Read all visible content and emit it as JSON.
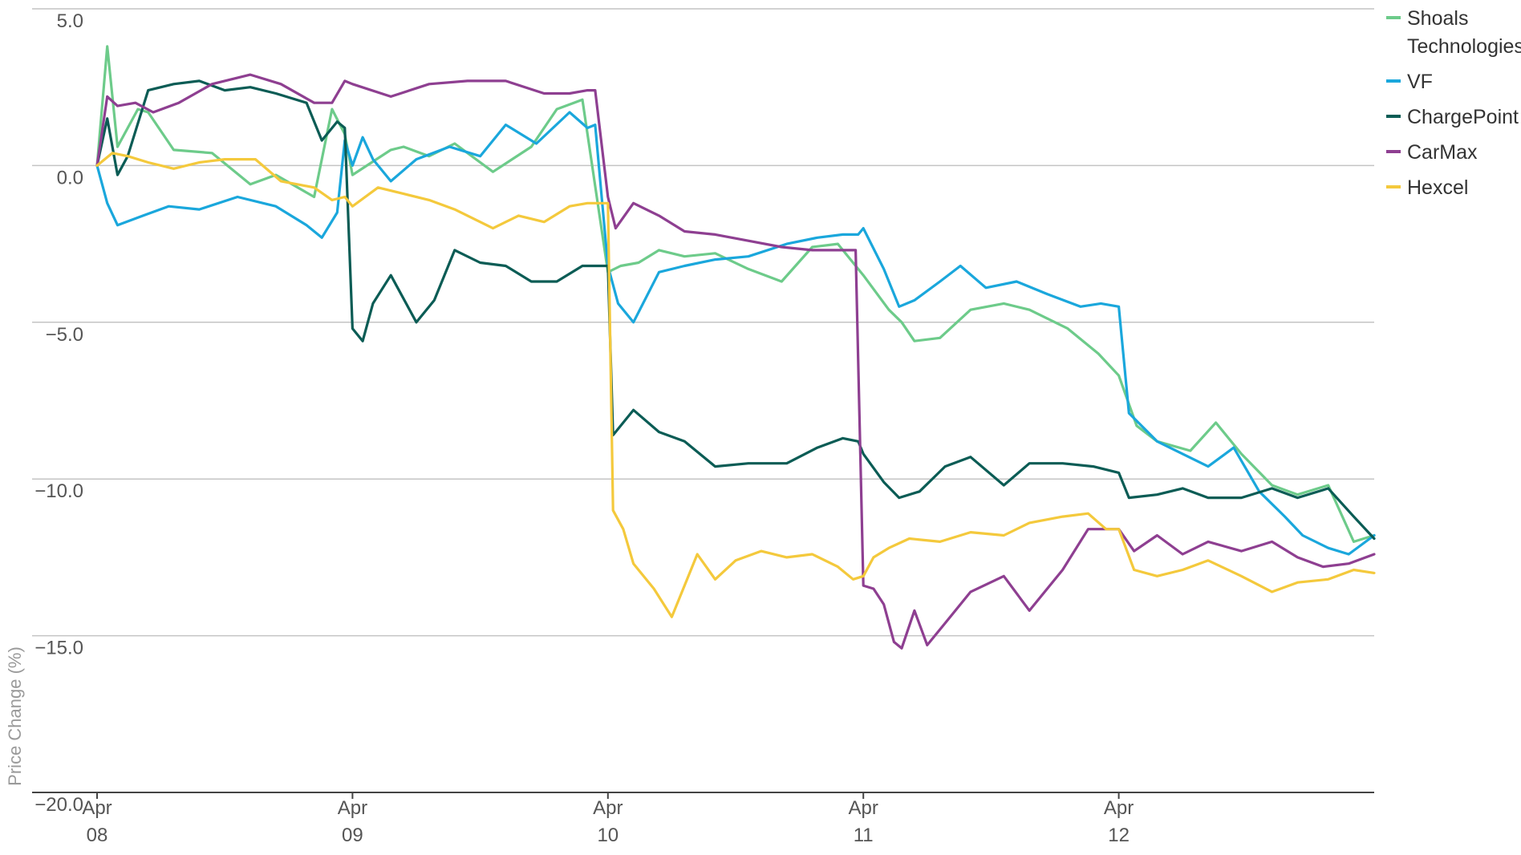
{
  "chart_data": {
    "type": "line",
    "title": "",
    "xlabel": "",
    "ylabel": "Price Change (%)",
    "ylim": [
      -20,
      5
    ],
    "yticks": [
      5,
      0,
      -5,
      -10,
      -15,
      -20
    ],
    "ytick_labels": [
      "5.0",
      "0.0",
      "−5.0",
      "−10.0",
      "−15.0",
      "−20.0"
    ],
    "gridlines": [
      5,
      0,
      -5,
      -10,
      -15
    ],
    "xlim": [
      0,
      5
    ],
    "xticks": [
      {
        "x": 0,
        "line1": "Apr",
        "line2": "08"
      },
      {
        "x": 1,
        "line1": "Apr",
        "line2": "09"
      },
      {
        "x": 2,
        "line1": "Apr",
        "line2": "10"
      },
      {
        "x": 3,
        "line1": "Apr",
        "line2": "11"
      },
      {
        "x": 4,
        "line1": "Apr",
        "line2": "12"
      }
    ],
    "legend_position": "right",
    "series": [
      {
        "name": "Shoals Technologies",
        "legend_lines": [
          "Shoals",
          "Technologies"
        ],
        "color": "#6dcb8a",
        "x": [
          0,
          0.04,
          0.08,
          0.16,
          0.2,
          0.3,
          0.45,
          0.6,
          0.7,
          0.85,
          0.92,
          0.97,
          1.0,
          1.15,
          1.2,
          1.3,
          1.4,
          1.55,
          1.7,
          1.8,
          1.9,
          2.0,
          2.05,
          2.12,
          2.2,
          2.3,
          2.42,
          2.55,
          2.68,
          2.8,
          2.9,
          3.0,
          3.1,
          3.15,
          3.2,
          3.3,
          3.42,
          3.55,
          3.65,
          3.8,
          3.92,
          4.0,
          4.07,
          4.15,
          4.28,
          4.38,
          4.48,
          4.6,
          4.7,
          4.82,
          4.92,
          5.0
        ],
        "y": [
          0,
          3.8,
          0.6,
          1.8,
          1.7,
          0.5,
          0.4,
          -0.6,
          -0.3,
          -1.0,
          1.8,
          1.0,
          -0.3,
          0.5,
          0.6,
          0.3,
          0.7,
          -0.2,
          0.6,
          1.8,
          2.1,
          -3.4,
          -3.2,
          -3.1,
          -2.7,
          -2.9,
          -2.8,
          -3.3,
          -3.7,
          -2.6,
          -2.5,
          -3.5,
          -4.6,
          -5.0,
          -5.6,
          -5.5,
          -4.6,
          -4.4,
          -4.6,
          -5.2,
          -6.0,
          -6.7,
          -8.3,
          -8.8,
          -9.1,
          -8.2,
          -9.2,
          -10.2,
          -10.5,
          -10.2,
          -12.0,
          -11.8
        ]
      },
      {
        "name": "VF",
        "legend_lines": [
          "VF"
        ],
        "color": "#1aa7dc",
        "x": [
          0,
          0.04,
          0.08,
          0.18,
          0.28,
          0.4,
          0.55,
          0.7,
          0.82,
          0.88,
          0.94,
          0.97,
          1.0,
          1.04,
          1.08,
          1.15,
          1.25,
          1.38,
          1.5,
          1.6,
          1.72,
          1.85,
          1.92,
          1.95,
          2.0,
          2.04,
          2.1,
          2.2,
          2.3,
          2.42,
          2.55,
          2.7,
          2.82,
          2.92,
          2.98,
          3.0,
          3.08,
          3.14,
          3.2,
          3.3,
          3.38,
          3.48,
          3.6,
          3.72,
          3.85,
          3.93,
          4.0,
          4.04,
          4.15,
          4.25,
          4.35,
          4.45,
          4.55,
          4.65,
          4.72,
          4.82,
          4.9,
          5.0
        ],
        "y": [
          0,
          -1.2,
          -1.9,
          -1.6,
          -1.3,
          -1.4,
          -1.0,
          -1.3,
          -1.9,
          -2.3,
          -1.5,
          0.8,
          0.0,
          0.9,
          0.2,
          -0.5,
          0.2,
          0.6,
          0.3,
          1.3,
          0.7,
          1.7,
          1.2,
          1.3,
          -3.2,
          -4.4,
          -5.0,
          -3.4,
          -3.2,
          -3.0,
          -2.9,
          -2.5,
          -2.3,
          -2.2,
          -2.2,
          -2.0,
          -3.3,
          -4.5,
          -4.3,
          -3.7,
          -3.2,
          -3.9,
          -3.7,
          -4.1,
          -4.5,
          -4.4,
          -4.5,
          -7.9,
          -8.8,
          -9.2,
          -9.6,
          -9.0,
          -10.4,
          -11.2,
          -11.8,
          -12.2,
          -12.4,
          -11.8
        ]
      },
      {
        "name": "ChargePoint",
        "legend_lines": [
          "ChargePoint"
        ],
        "color": "#0b5c55",
        "x": [
          0,
          0.04,
          0.08,
          0.12,
          0.2,
          0.3,
          0.4,
          0.5,
          0.6,
          0.7,
          0.82,
          0.88,
          0.94,
          0.97,
          1.0,
          1.04,
          1.08,
          1.15,
          1.25,
          1.32,
          1.4,
          1.5,
          1.6,
          1.7,
          1.8,
          1.9,
          2.0,
          2.02,
          2.1,
          2.2,
          2.3,
          2.42,
          2.55,
          2.7,
          2.82,
          2.92,
          2.98,
          3.0,
          3.08,
          3.14,
          3.22,
          3.32,
          3.42,
          3.55,
          3.65,
          3.78,
          3.9,
          4.0,
          4.04,
          4.15,
          4.25,
          4.35,
          4.48,
          4.6,
          4.7,
          4.82,
          4.92,
          5.0
        ],
        "y": [
          0,
          1.5,
          -0.3,
          0.3,
          2.4,
          2.6,
          2.7,
          2.4,
          2.5,
          2.3,
          2.0,
          0.8,
          1.4,
          1.2,
          -5.2,
          -5.6,
          -4.4,
          -3.5,
          -5.0,
          -4.3,
          -2.7,
          -3.1,
          -3.2,
          -3.7,
          -3.7,
          -3.2,
          -3.2,
          -8.6,
          -7.8,
          -8.5,
          -8.8,
          -9.6,
          -9.5,
          -9.5,
          -9.0,
          -8.7,
          -8.8,
          -9.2,
          -10.1,
          -10.6,
          -10.4,
          -9.6,
          -9.3,
          -10.2,
          -9.5,
          -9.5,
          -9.6,
          -9.8,
          -10.6,
          -10.5,
          -10.3,
          -10.6,
          -10.6,
          -10.3,
          -10.6,
          -10.3,
          -11.2,
          -11.9
        ]
      },
      {
        "name": "CarMax",
        "legend_lines": [
          "CarMax"
        ],
        "color": "#8e3f91",
        "x": [
          0,
          0.04,
          0.08,
          0.15,
          0.22,
          0.32,
          0.45,
          0.6,
          0.72,
          0.85,
          0.92,
          0.97,
          1.0,
          1.15,
          1.3,
          1.45,
          1.6,
          1.75,
          1.85,
          1.92,
          1.95,
          2.0,
          2.03,
          2.1,
          2.2,
          2.3,
          2.42,
          2.55,
          2.68,
          2.8,
          2.9,
          2.97,
          3.0,
          3.04,
          3.08,
          3.12,
          3.15,
          3.2,
          3.25,
          3.32,
          3.42,
          3.55,
          3.65,
          3.78,
          3.88,
          3.95,
          4.0,
          4.06,
          4.15,
          4.25,
          4.35,
          4.48,
          4.6,
          4.7,
          4.8,
          4.9,
          5.0
        ],
        "y": [
          0,
          2.2,
          1.9,
          2.0,
          1.7,
          2.0,
          2.6,
          2.9,
          2.6,
          2.0,
          2.0,
          2.7,
          2.6,
          2.2,
          2.6,
          2.7,
          2.7,
          2.3,
          2.3,
          2.4,
          2.4,
          -1.0,
          -2.0,
          -1.2,
          -1.6,
          -2.1,
          -2.2,
          -2.4,
          -2.6,
          -2.7,
          -2.7,
          -2.7,
          -13.4,
          -13.5,
          -14.0,
          -15.2,
          -15.4,
          -14.2,
          -15.3,
          -14.6,
          -13.6,
          -13.1,
          -14.2,
          -12.9,
          -11.6,
          -11.6,
          -11.6,
          -12.3,
          -11.8,
          -12.4,
          -12.0,
          -12.3,
          -12.0,
          -12.5,
          -12.8,
          -12.7,
          -12.4
        ]
      },
      {
        "name": "Hexcel",
        "legend_lines": [
          "Hexcel"
        ],
        "color": "#f4c93c",
        "x": [
          0,
          0.06,
          0.12,
          0.2,
          0.3,
          0.4,
          0.5,
          0.62,
          0.72,
          0.85,
          0.92,
          0.97,
          1.0,
          1.1,
          1.2,
          1.3,
          1.4,
          1.55,
          1.65,
          1.75,
          1.85,
          1.92,
          1.97,
          2.0,
          2.02,
          2.06,
          2.1,
          2.18,
          2.25,
          2.35,
          2.42,
          2.5,
          2.6,
          2.7,
          2.8,
          2.9,
          2.96,
          3.0,
          3.04,
          3.1,
          3.18,
          3.3,
          3.42,
          3.55,
          3.65,
          3.78,
          3.88,
          3.95,
          4.0,
          4.06,
          4.15,
          4.25,
          4.35,
          4.48,
          4.6,
          4.7,
          4.82,
          4.92,
          5.0
        ],
        "y": [
          0,
          0.4,
          0.3,
          0.1,
          -0.1,
          0.1,
          0.2,
          0.2,
          -0.5,
          -0.7,
          -1.1,
          -1.0,
          -1.3,
          -0.7,
          -0.9,
          -1.1,
          -1.4,
          -2.0,
          -1.6,
          -1.8,
          -1.3,
          -1.2,
          -1.2,
          -1.2,
          -11.0,
          -11.6,
          -12.7,
          -13.5,
          -14.4,
          -12.4,
          -13.2,
          -12.6,
          -12.3,
          -12.5,
          -12.4,
          -12.8,
          -13.2,
          -13.1,
          -12.5,
          -12.2,
          -11.9,
          -12.0,
          -11.7,
          -11.8,
          -11.4,
          -11.2,
          -11.1,
          -11.6,
          -11.6,
          -12.9,
          -13.1,
          -12.9,
          -12.6,
          -13.1,
          -13.6,
          -13.3,
          -13.2,
          -12.9,
          -13.0
        ]
      }
    ]
  }
}
